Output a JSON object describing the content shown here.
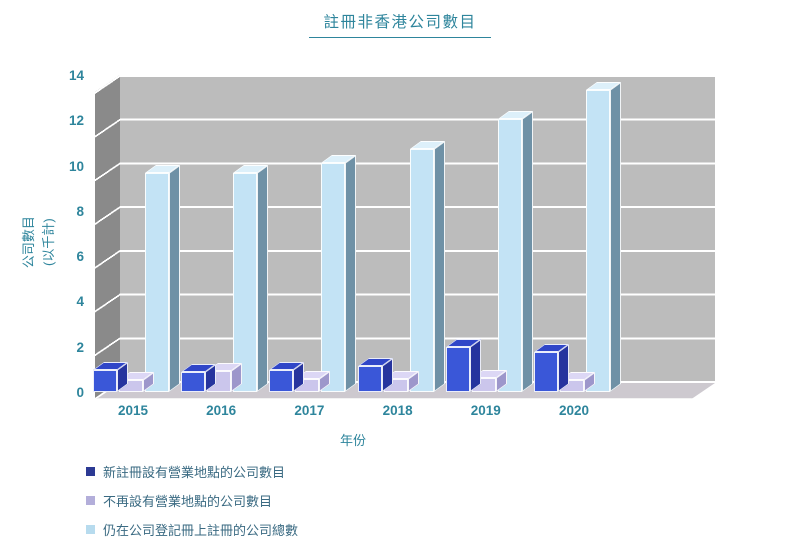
{
  "title": "註冊非香港公司數目",
  "chart_data": {
    "type": "bar",
    "style": "3d-clustered-column",
    "title": "註冊非香港公司數目",
    "categories": [
      "2015",
      "2016",
      "2017",
      "2018",
      "2019",
      "2020"
    ],
    "series": [
      {
        "name": "新註冊設有營業地點的公司數目",
        "values": [
          1.0,
          0.9,
          1.0,
          1.2,
          2.05,
          1.85
        ],
        "color_front": "#3A57D8",
        "color_side": "#26349E",
        "color_top": "#3046C8",
        "legend_color": "#2C3A94"
      },
      {
        "name": "不再設有營業地點的公司數目",
        "values": [
          0.55,
          0.95,
          0.6,
          0.6,
          0.65,
          0.55
        ],
        "color_front": "#CBC6EC",
        "color_side": "#9D97CB",
        "color_top": "#DCD7F5",
        "legend_color": "#B3AEDA"
      },
      {
        "name": "仍在公司登記冊上註冊的公司總數",
        "values": [
          10.0,
          10.0,
          10.5,
          11.1,
          12.5,
          13.8
        ],
        "color_front": "#C3E3F5",
        "color_side": "#6F91A6",
        "color_top": "#DDF0FA",
        "legend_color": "#B7DBEE"
      }
    ],
    "xlabel": "年份",
    "ylabel": "公司數目 (以千計)",
    "ylim": [
      0,
      14
    ],
    "ytick_step": 2,
    "yticks": [
      "0",
      "2",
      "4",
      "6",
      "8",
      "10",
      "12",
      "14"
    ],
    "grid": true,
    "legend_position": "bottom-left"
  },
  "y_axis": {
    "title_line1": "公司數目",
    "title_line2": "(以千計)"
  },
  "x_axis": {
    "title": "年份"
  },
  "colors": {
    "text_teal": "#2E859C",
    "legend_text": "#3A6A82",
    "back_wall": "#BCBCBC",
    "left_wall": "#8A8A8A",
    "floor": "#CDC9CF",
    "gridline": "#FFFFFF"
  }
}
